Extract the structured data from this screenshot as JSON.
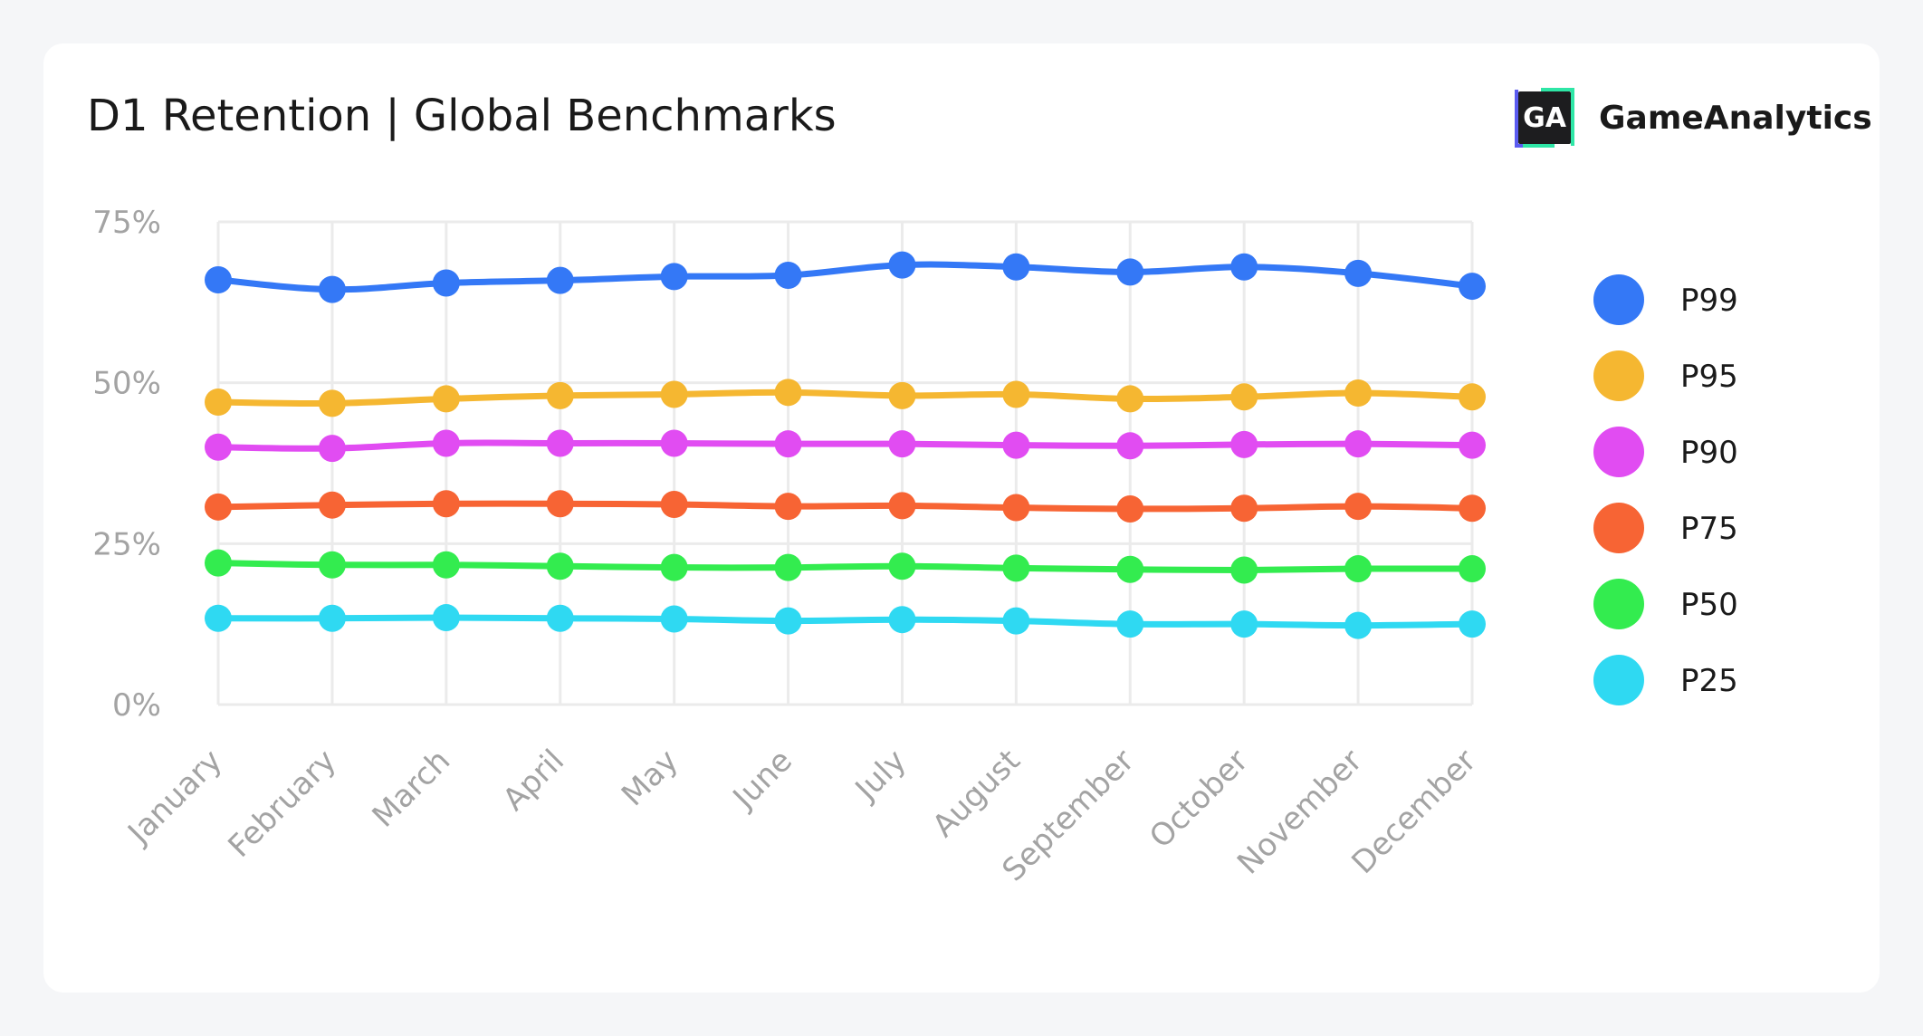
{
  "header": {
    "title": "D1 Retention | Global Benchmarks",
    "brand_name": "GameAnalytics",
    "logo_text": "GA"
  },
  "colors": {
    "logo_bg": "#1d1d1f",
    "logo_accent_left": "#2ee6a6",
    "logo_accent_right": "#5b5cf0",
    "grid": "#ebebeb"
  },
  "chart_data": {
    "type": "line",
    "title": "D1 Retention | Global Benchmarks",
    "xlabel": "",
    "ylabel": "",
    "ylim": [
      0,
      75
    ],
    "yticks": [
      0,
      25,
      50,
      75
    ],
    "ytick_labels": [
      "0%",
      "25%",
      "50%",
      "75%"
    ],
    "grid": true,
    "legend_position": "right",
    "categories": [
      "January",
      "February",
      "March",
      "April",
      "May",
      "June",
      "July",
      "August",
      "September",
      "October",
      "November",
      "December"
    ],
    "series": [
      {
        "name": "P99",
        "color": "#3478f6",
        "values": [
          66.0,
          64.5,
          65.5,
          65.9,
          66.5,
          66.7,
          68.3,
          68.0,
          67.2,
          68.0,
          67.0,
          65.0
        ]
      },
      {
        "name": "P95",
        "color": "#f5b731",
        "values": [
          47.0,
          46.8,
          47.5,
          48.0,
          48.2,
          48.5,
          48.0,
          48.2,
          47.5,
          47.8,
          48.4,
          47.8
        ]
      },
      {
        "name": "P90",
        "color": "#e14cf2",
        "values": [
          40.0,
          39.8,
          40.6,
          40.6,
          40.6,
          40.5,
          40.5,
          40.3,
          40.2,
          40.4,
          40.5,
          40.3
        ]
      },
      {
        "name": "P75",
        "color": "#f76434",
        "values": [
          30.7,
          31.0,
          31.2,
          31.2,
          31.1,
          30.8,
          30.9,
          30.6,
          30.4,
          30.5,
          30.8,
          30.5
        ]
      },
      {
        "name": "P50",
        "color": "#33ec4f",
        "values": [
          22.0,
          21.7,
          21.7,
          21.5,
          21.3,
          21.3,
          21.5,
          21.2,
          21.0,
          20.9,
          21.1,
          21.1
        ]
      },
      {
        "name": "P25",
        "color": "#2fd9f2",
        "values": [
          13.4,
          13.4,
          13.5,
          13.4,
          13.3,
          13.0,
          13.2,
          13.0,
          12.5,
          12.5,
          12.3,
          12.5
        ]
      }
    ]
  }
}
